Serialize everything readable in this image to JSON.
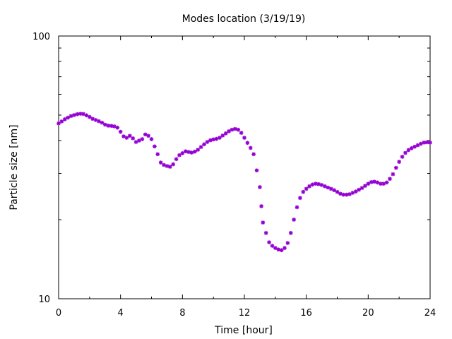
{
  "chart_data": {
    "type": "scatter",
    "title": "Modes location (3/19/19)",
    "xlabel": "Time [hour]",
    "ylabel": "Particle size [nm]",
    "xlim": [
      0,
      24
    ],
    "ylim": [
      10,
      100
    ],
    "y_scale": "log",
    "x_ticks": [
      0,
      4,
      8,
      12,
      16,
      20,
      24
    ],
    "x_tick_labels": [
      "0",
      "4",
      "8",
      "12",
      "16",
      "20",
      "24"
    ],
    "y_ticks": [
      10,
      100
    ],
    "y_tick_labels": [
      "10",
      "100"
    ],
    "grid": false,
    "legend": "none",
    "marker": "asterisk",
    "series": [
      {
        "color": "#9400D3",
        "points": [
          [
            0.0,
            46.5
          ],
          [
            0.2,
            47.3
          ],
          [
            0.4,
            48.2
          ],
          [
            0.6,
            48.9
          ],
          [
            0.8,
            49.6
          ],
          [
            1.0,
            50.0
          ],
          [
            1.2,
            50.4
          ],
          [
            1.4,
            50.6
          ],
          [
            1.6,
            50.5
          ],
          [
            1.8,
            49.9
          ],
          [
            2.0,
            49.2
          ],
          [
            2.2,
            48.4
          ],
          [
            2.4,
            47.9
          ],
          [
            2.6,
            47.4
          ],
          [
            2.8,
            46.8
          ],
          [
            3.0,
            46.0
          ],
          [
            3.2,
            45.6
          ],
          [
            3.4,
            45.5
          ],
          [
            3.6,
            45.3
          ],
          [
            3.8,
            44.8
          ],
          [
            4.0,
            43.2
          ],
          [
            4.2,
            41.5
          ],
          [
            4.4,
            41.0
          ],
          [
            4.6,
            41.7
          ],
          [
            4.8,
            40.8
          ],
          [
            5.0,
            39.5
          ],
          [
            5.2,
            40.0
          ],
          [
            5.4,
            40.5
          ],
          [
            5.6,
            42.2
          ],
          [
            5.8,
            41.7
          ],
          [
            6.0,
            40.5
          ],
          [
            6.2,
            38.0
          ],
          [
            6.4,
            35.5
          ],
          [
            6.6,
            33.0
          ],
          [
            6.8,
            32.3
          ],
          [
            7.0,
            32.0
          ],
          [
            7.2,
            31.8
          ],
          [
            7.4,
            32.5
          ],
          [
            7.6,
            34.0
          ],
          [
            7.8,
            35.2
          ],
          [
            8.0,
            35.8
          ],
          [
            8.2,
            36.4
          ],
          [
            8.4,
            36.2
          ],
          [
            8.6,
            36.0
          ],
          [
            8.8,
            36.3
          ],
          [
            9.0,
            36.9
          ],
          [
            9.2,
            37.8
          ],
          [
            9.4,
            38.7
          ],
          [
            9.6,
            39.5
          ],
          [
            9.8,
            40.1
          ],
          [
            10.0,
            40.4
          ],
          [
            10.2,
            40.6
          ],
          [
            10.4,
            41.0
          ],
          [
            10.6,
            41.8
          ],
          [
            10.8,
            42.6
          ],
          [
            11.0,
            43.4
          ],
          [
            11.2,
            44.0
          ],
          [
            11.4,
            44.3
          ],
          [
            11.6,
            44.0
          ],
          [
            11.8,
            42.8
          ],
          [
            12.0,
            41.0
          ],
          [
            12.2,
            39.2
          ],
          [
            12.4,
            37.5
          ],
          [
            12.6,
            35.5
          ],
          [
            12.8,
            30.8
          ],
          [
            13.0,
            26.6
          ],
          [
            13.1,
            22.5
          ],
          [
            13.2,
            19.5
          ],
          [
            13.4,
            17.8
          ],
          [
            13.6,
            16.4
          ],
          [
            13.8,
            15.9
          ],
          [
            14.0,
            15.6
          ],
          [
            14.2,
            15.4
          ],
          [
            14.4,
            15.3
          ],
          [
            14.6,
            15.6
          ],
          [
            14.8,
            16.3
          ],
          [
            15.0,
            17.8
          ],
          [
            15.2,
            20.0
          ],
          [
            15.4,
            22.3
          ],
          [
            15.6,
            24.2
          ],
          [
            15.8,
            25.5
          ],
          [
            16.0,
            26.2
          ],
          [
            16.2,
            26.8
          ],
          [
            16.4,
            27.2
          ],
          [
            16.6,
            27.4
          ],
          [
            16.8,
            27.3
          ],
          [
            17.0,
            27.1
          ],
          [
            17.2,
            26.8
          ],
          [
            17.4,
            26.5
          ],
          [
            17.6,
            26.2
          ],
          [
            17.8,
            25.9
          ],
          [
            18.0,
            25.5
          ],
          [
            18.2,
            25.1
          ],
          [
            18.4,
            24.9
          ],
          [
            18.6,
            24.9
          ],
          [
            18.8,
            25.0
          ],
          [
            19.0,
            25.3
          ],
          [
            19.2,
            25.6
          ],
          [
            19.4,
            26.0
          ],
          [
            19.6,
            26.4
          ],
          [
            19.8,
            26.9
          ],
          [
            20.0,
            27.4
          ],
          [
            20.2,
            27.8
          ],
          [
            20.4,
            27.9
          ],
          [
            20.6,
            27.7
          ],
          [
            20.8,
            27.4
          ],
          [
            21.0,
            27.4
          ],
          [
            21.2,
            27.7
          ],
          [
            21.4,
            28.6
          ],
          [
            21.6,
            29.8
          ],
          [
            21.8,
            31.5
          ],
          [
            22.0,
            33.2
          ],
          [
            22.2,
            34.7
          ],
          [
            22.4,
            35.9
          ],
          [
            22.6,
            36.8
          ],
          [
            22.8,
            37.4
          ],
          [
            23.0,
            37.9
          ],
          [
            23.2,
            38.4
          ],
          [
            23.4,
            38.9
          ],
          [
            23.6,
            39.3
          ],
          [
            23.8,
            39.4
          ],
          [
            24.0,
            39.3
          ]
        ]
      }
    ]
  }
}
